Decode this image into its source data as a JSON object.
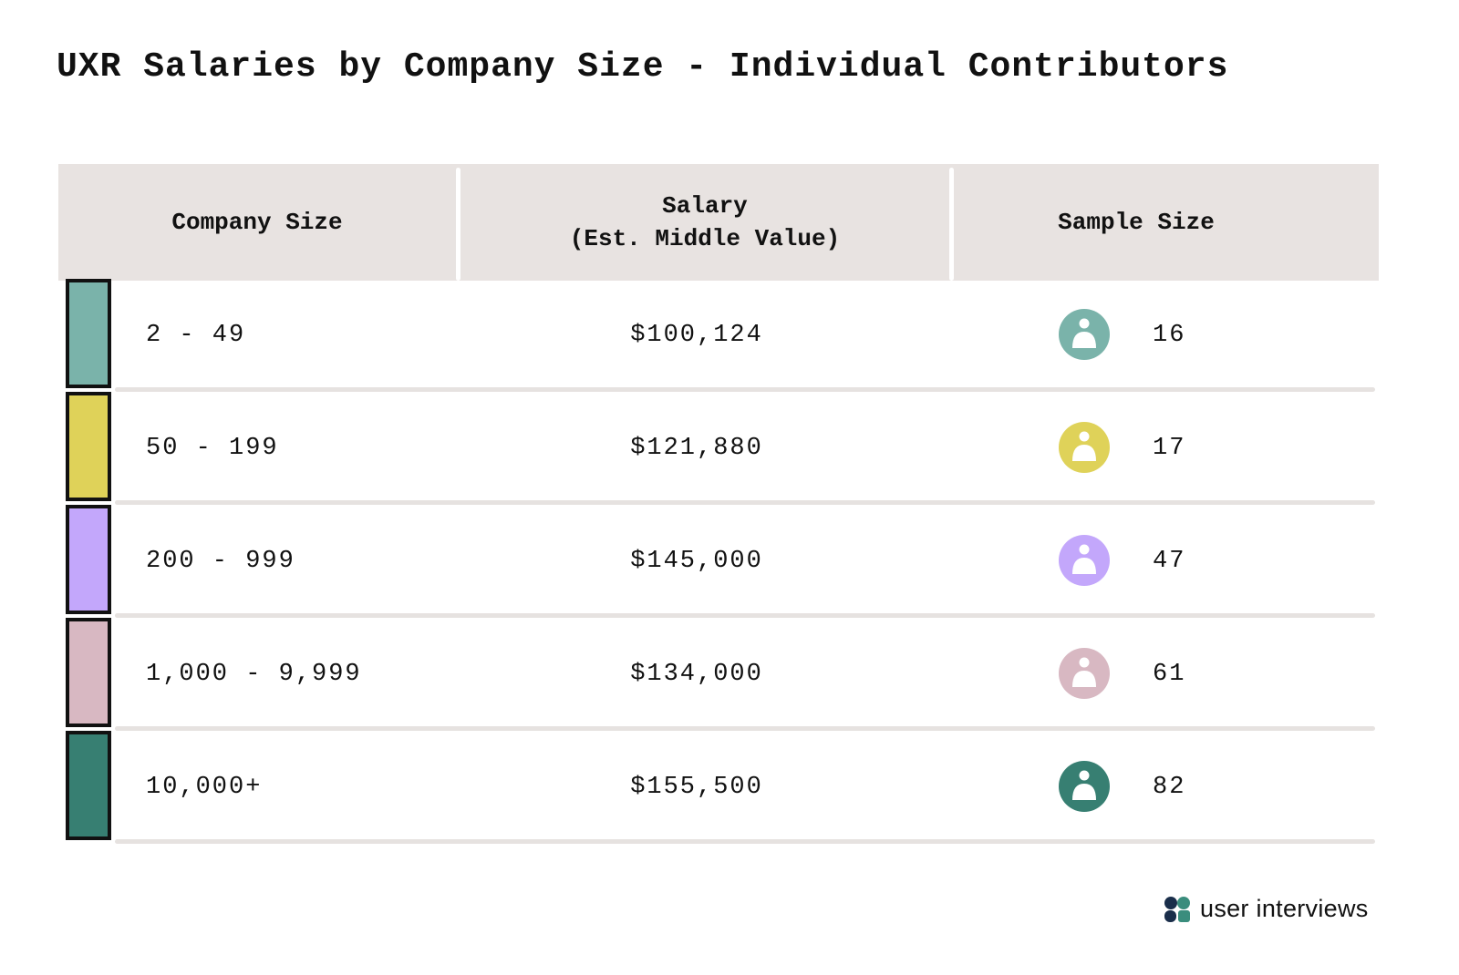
{
  "title": "UXR Salaries by Company Size - Individual Contributors",
  "chart_data": {
    "type": "table",
    "columns": [
      "Company Size",
      "Salary\n(Est. Middle Value)",
      "Sample Size"
    ],
    "rows": [
      {
        "company_size": "2 - 49",
        "salary": "$100,124",
        "sample_size": "16",
        "color": "#7ab3aa"
      },
      {
        "company_size": "50 - 199",
        "salary": "$121,880",
        "sample_size": "17",
        "color": "#dfd259"
      },
      {
        "company_size": "200 - 999",
        "salary": "$145,000",
        "sample_size": "47",
        "color": "#c3a7fb"
      },
      {
        "company_size": "1,000 - 9,999",
        "salary": "$134,000",
        "sample_size": "61",
        "color": "#d8b8c2"
      },
      {
        "company_size": "10,000+",
        "salary": "$155,500",
        "sample_size": "82",
        "color": "#377f72"
      }
    ]
  },
  "brand": {
    "name": "user interviews",
    "logo_colors": [
      "#1a2e4a",
      "#3a8d7d",
      "#1a2e4a",
      "#3a8d7d"
    ],
    "logo_icon": "user-interviews-logo-icon"
  }
}
